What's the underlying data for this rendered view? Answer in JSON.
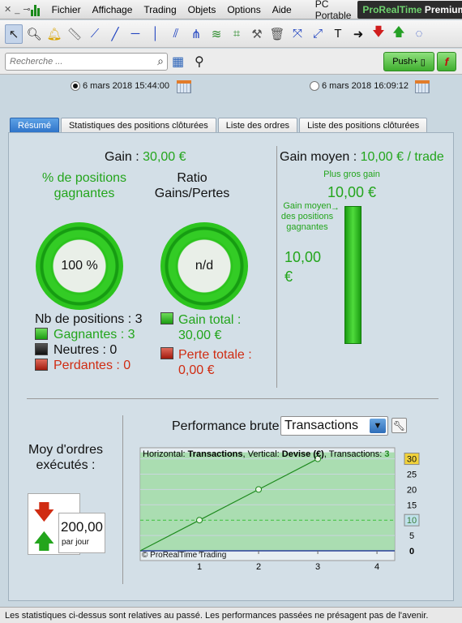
{
  "menubar": {
    "items": [
      "Fichier",
      "Affichage",
      "Trading",
      "Objets",
      "Options",
      "Aide"
    ],
    "pc_portable": "PC Portable",
    "badge_brand": "ProRealTime",
    "badge_tier": "Premium"
  },
  "search": {
    "placeholder": "Recherche ..."
  },
  "buttons": {
    "push": "Push+",
    "script": "f"
  },
  "dates": {
    "start": "6 mars 2018 15:44:00",
    "end": "6 mars 2018 16:09:12",
    "start_selected": true
  },
  "tabs": [
    {
      "label": "Résumé",
      "active": true
    },
    {
      "label": "Statistiques des positions clôturées",
      "active": false
    },
    {
      "label": "Liste des ordres",
      "active": false
    },
    {
      "label": "Liste des positions clôturées",
      "active": false
    }
  ],
  "summary": {
    "gain_label": "Gain : ",
    "gain_value": "30,00 €",
    "pct_win_label": "% de positions gagnantes",
    "pct_win_value": "100 %",
    "pct_win_fraction": 1.0,
    "ratio_label": "Ratio Gains/Pertes",
    "ratio_value": "n/d",
    "nb_positions": "Nb de positions : 3",
    "winners": "Gagnantes : 3",
    "neutral": "Neutres : 0",
    "losers": "Perdantes : 0",
    "total_gain_label": "Gain total :",
    "total_gain_value": "30,00 €",
    "total_loss_label": "Perte totale :",
    "total_loss_value": "0,00 €",
    "avg_gain_label": "Gain moyen : ",
    "avg_gain_value": "10,00 € / trade",
    "biggest_gain_label": "Plus gros gain",
    "biggest_gain_value": "10,00 €",
    "avg_win_label": "Gain moyen des positions gagnantes",
    "avg_win_value": "10,00 €",
    "avg_orders_label": "Moy d'ordres exécutés :",
    "avg_orders_value": "200,00",
    "avg_orders_unit": "par jour"
  },
  "performance": {
    "label": "Performance brute",
    "select_value": "Transactions"
  },
  "chart_data": {
    "type": "line",
    "legend_prefix_h": "Horizontal: ",
    "legend_h": "Transactions",
    "legend_prefix_v": ", Vertical: ",
    "legend_v": "Devise (€)",
    "legend_prefix_n": ", Transactions: ",
    "legend_n": "3",
    "x": [
      0,
      1,
      2,
      3
    ],
    "y": [
      0,
      10,
      20,
      30
    ],
    "xlim": [
      0,
      4.3
    ],
    "ylim": [
      0,
      32
    ],
    "x_ticks": [
      "1",
      "2",
      "3",
      "4"
    ],
    "y_ticks": [
      "5",
      "10",
      "15",
      "20",
      "25",
      "30"
    ],
    "highlight_tags": [
      "30",
      "10"
    ],
    "zero_label": "0",
    "watermark": "© ProRealTime Trading",
    "colors": {
      "fill": "#9fd9a6",
      "line": "#1e8a1e",
      "axis": "#2a3f9a"
    }
  },
  "footer": "Les statistiques ci-dessus sont relatives au passé. Les performances passées ne présagent pas de l'avenir."
}
